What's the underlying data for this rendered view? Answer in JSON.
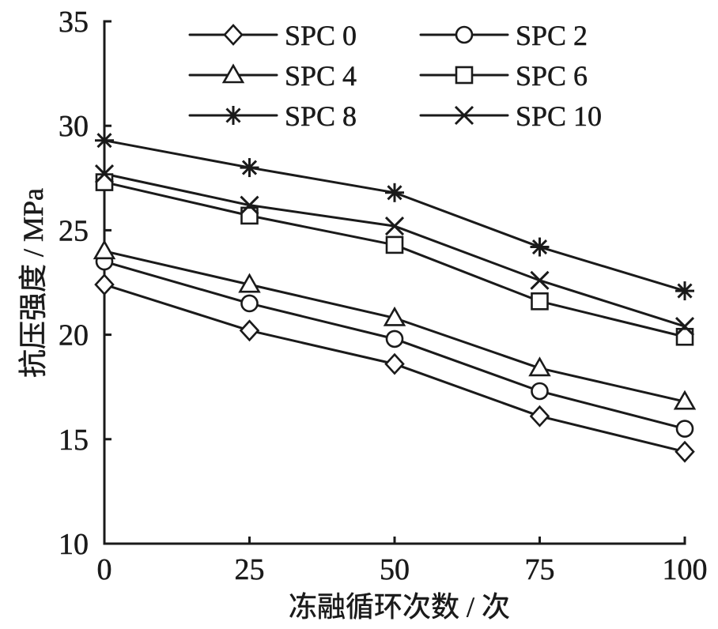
{
  "chart_data": {
    "type": "line",
    "xlabel": "冻融循环次数 / 次",
    "ylabel": "抗压强度 / MPa",
    "x": [
      0,
      25,
      50,
      75,
      100
    ],
    "xticks": [
      "0",
      "25",
      "50",
      "75",
      "100"
    ],
    "yticks": [
      "10",
      "15",
      "20",
      "25",
      "30",
      "35"
    ],
    "xlim": [
      0,
      100
    ],
    "ylim": [
      10,
      35
    ],
    "grid": false,
    "legend_position": "top",
    "line_color": "#1a1a1a",
    "background_color": "#ffffff",
    "series": [
      {
        "name": "SPC 0",
        "marker": "diamond",
        "values": [
          22.4,
          20.2,
          18.6,
          16.1,
          14.4
        ]
      },
      {
        "name": "SPC 2",
        "marker": "circle",
        "values": [
          23.5,
          21.5,
          19.8,
          17.3,
          15.5
        ]
      },
      {
        "name": "SPC 4",
        "marker": "triangle",
        "values": [
          24.0,
          22.4,
          20.8,
          18.4,
          16.8
        ]
      },
      {
        "name": "SPC 6",
        "marker": "square",
        "values": [
          27.3,
          25.7,
          24.3,
          21.6,
          19.9
        ]
      },
      {
        "name": "SPC 8",
        "marker": "asterisk",
        "values": [
          29.3,
          28.0,
          26.8,
          24.2,
          22.1
        ]
      },
      {
        "name": "SPC 10",
        "marker": "x-cross",
        "values": [
          27.7,
          26.2,
          25.2,
          22.6,
          20.4
        ]
      }
    ]
  }
}
